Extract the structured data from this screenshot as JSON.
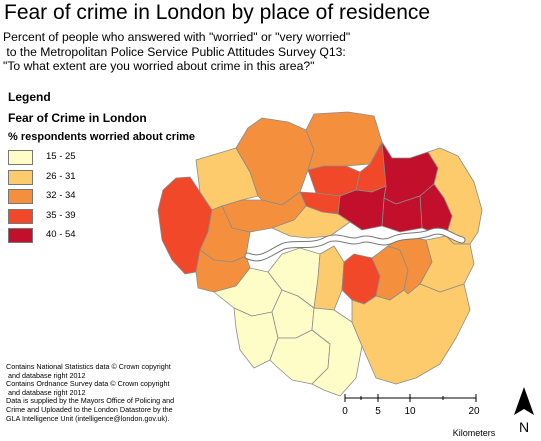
{
  "title": "Fear of crime in London by place of residence",
  "subtitle": [
    "Percent of people who answered with \"worried\" or \"very worried\"",
    " to the Metropolitan Police Service Public Attitudes Survey Q13:",
    "\"To what extent are you worried about crime in this area?\""
  ],
  "legend": {
    "heading": "Legend",
    "layer": "Fear of Crime in London",
    "field": "% respondents worried about crime",
    "classes": [
      {
        "label": "15 - 25",
        "color": "#fefdc8"
      },
      {
        "label": "26 - 31",
        "color": "#fdcb6b"
      },
      {
        "label": "32 - 34",
        "color": "#f48f3e"
      },
      {
        "label": "35 - 39",
        "color": "#f04828"
      },
      {
        "label": "40 - 54",
        "color": "#c20f2b"
      }
    ]
  },
  "map_colors": {
    "border": "#8c8c8c",
    "river": "#ffffff",
    "river_edge": "#777777"
  },
  "scale_bar": {
    "ticks": [
      "0",
      "5",
      "10",
      "20"
    ],
    "unit": "Kilometers"
  },
  "north_arrow": {
    "label": "N"
  },
  "credits": [
    "Contains National Statistics data © Crown copyright",
    " and database right 2012",
    "Contains Ordnance Survey data © Crown copyright",
    " and database right 2012",
    "Data is supplied by the Mayors Office of Policing and",
    "Crime and Uploaded to the London Datastore by the",
    "GLA Intelligence Unit (intelligence@london.gov.uk)."
  ]
}
